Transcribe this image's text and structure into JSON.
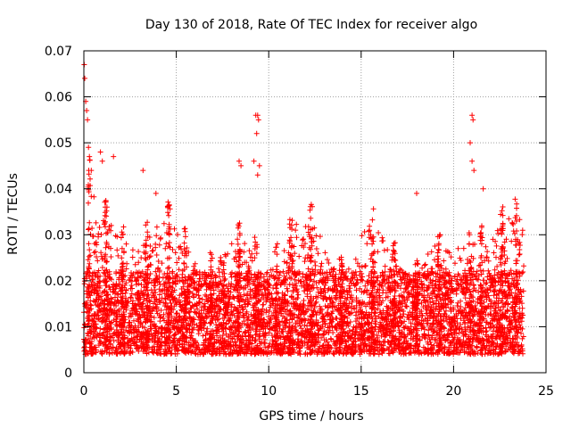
{
  "chart_data": {
    "type": "scatter",
    "title": "Day 130 of 2018, Rate Of TEC Index for receiver algo",
    "xlabel": "GPS time / hours",
    "ylabel": "ROTI / TECUs",
    "xlim": [
      0,
      25
    ],
    "ylim": [
      0,
      0.07
    ],
    "xticks": [
      0,
      5,
      10,
      15,
      20,
      25
    ],
    "xtick_labels": [
      "0",
      "5",
      "10",
      "15",
      "20",
      "25"
    ],
    "yticks": [
      0,
      0.01,
      0.02,
      0.03,
      0.04,
      0.05,
      0.06,
      0.07
    ],
    "ytick_labels": [
      "0",
      "0.01",
      "0.02",
      "0.03",
      "0.04",
      "0.05",
      "0.06",
      "0.07"
    ],
    "grid": true,
    "marker": "+",
    "series_color": "#ff0000",
    "grid_color": "#a0a0a0",
    "data_range_hours": [
      0,
      23.8
    ],
    "outliers": [
      {
        "x": 0.02,
        "y": 0.067
      },
      {
        "x": 0.05,
        "y": 0.064
      },
      {
        "x": 0.1,
        "y": 0.059
      },
      {
        "x": 0.15,
        "y": 0.057
      },
      {
        "x": 0.2,
        "y": 0.055
      },
      {
        "x": 0.25,
        "y": 0.049
      },
      {
        "x": 0.3,
        "y": 0.047
      },
      {
        "x": 0.4,
        "y": 0.044
      },
      {
        "x": 0.9,
        "y": 0.048
      },
      {
        "x": 1.0,
        "y": 0.046
      },
      {
        "x": 1.6,
        "y": 0.047
      },
      {
        "x": 3.2,
        "y": 0.044
      },
      {
        "x": 3.9,
        "y": 0.039
      },
      {
        "x": 8.4,
        "y": 0.046
      },
      {
        "x": 8.5,
        "y": 0.045
      },
      {
        "x": 9.2,
        "y": 0.046
      },
      {
        "x": 9.3,
        "y": 0.056
      },
      {
        "x": 9.4,
        "y": 0.056
      },
      {
        "x": 9.45,
        "y": 0.055
      },
      {
        "x": 9.35,
        "y": 0.052
      },
      {
        "x": 9.5,
        "y": 0.045
      },
      {
        "x": 9.4,
        "y": 0.043
      },
      {
        "x": 18.0,
        "y": 0.039
      },
      {
        "x": 20.9,
        "y": 0.05
      },
      {
        "x": 21.0,
        "y": 0.056
      },
      {
        "x": 21.05,
        "y": 0.055
      },
      {
        "x": 21.0,
        "y": 0.046
      },
      {
        "x": 21.1,
        "y": 0.044
      },
      {
        "x": 21.6,
        "y": 0.04
      }
    ]
  }
}
